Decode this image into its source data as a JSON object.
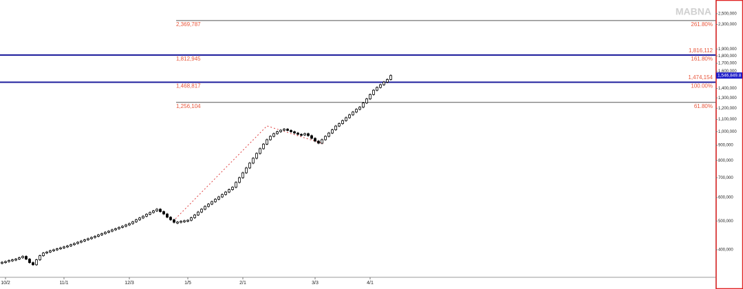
{
  "chart_data": {
    "type": "candlestick",
    "watermark": "MABNA",
    "log_scale": true,
    "ylim": [
      323000,
      2780000
    ],
    "yticks": [
      {
        "value": 400000,
        "label": "400,000"
      },
      {
        "value": 500000,
        "label": "500,000"
      },
      {
        "value": 600000,
        "label": "600,000"
      },
      {
        "value": 700000,
        "label": "700,000"
      },
      {
        "value": 800000,
        "label": "800,000"
      },
      {
        "value": 900000,
        "label": "900,000"
      },
      {
        "value": 1000000,
        "label": "1,000,000"
      },
      {
        "value": 1100000,
        "label": "1,100,000"
      },
      {
        "value": 1200000,
        "label": "1,200,000"
      },
      {
        "value": 1300000,
        "label": "1,300,000"
      },
      {
        "value": 1400000,
        "label": "1,400,000"
      },
      {
        "value": 1600000,
        "label": "1,600,000"
      },
      {
        "value": 1700000,
        "label": "1,700,000"
      },
      {
        "value": 1800000,
        "label": "1,800,000"
      },
      {
        "value": 1900000,
        "label": "1,900,000"
      },
      {
        "value": 2300000,
        "label": "2,300,000"
      },
      {
        "value": 2500000,
        "label": "2,500,000"
      }
    ],
    "categories": [
      null,
      "10/2",
      null,
      null,
      null,
      null,
      null,
      null,
      null,
      null,
      null,
      null,
      null,
      null,
      null,
      null,
      null,
      null,
      "11/1",
      null,
      null,
      null,
      null,
      null,
      null,
      null,
      null,
      null,
      null,
      null,
      null,
      null,
      null,
      null,
      null,
      null,
      null,
      "12/3",
      null,
      null,
      null,
      null,
      null,
      null,
      null,
      null,
      null,
      null,
      null,
      null,
      null,
      null,
      null,
      null,
      "1/5",
      null,
      null,
      null,
      null,
      null,
      null,
      null,
      null,
      null,
      null,
      null,
      null,
      null,
      null,
      null,
      "2/1",
      null,
      null,
      null,
      null,
      null,
      null,
      null,
      null,
      null,
      null,
      null,
      null,
      null,
      null,
      null,
      null,
      null,
      null,
      null,
      null,
      "3/3",
      null,
      null,
      null,
      null,
      null,
      null,
      null,
      null,
      null,
      null,
      null,
      null,
      null,
      null,
      null,
      "4/1",
      null,
      null,
      null,
      null,
      null,
      null
    ],
    "open": [
      360000,
      363000,
      365000,
      368000,
      370000,
      372000,
      376000,
      380000,
      372000,
      362000,
      356000,
      370000,
      382000,
      390000,
      393000,
      397000,
      400000,
      403000,
      406000,
      409000,
      412000,
      416000,
      420000,
      424000,
      428000,
      432000,
      436000,
      440000,
      444000,
      449000,
      453000,
      458000,
      462000,
      467000,
      471000,
      476000,
      480000,
      485000,
      490000,
      497000,
      505000,
      512000,
      519000,
      527000,
      534000,
      541000,
      548000,
      538000,
      528000,
      515000,
      505000,
      495000,
      496000,
      499000,
      501000,
      503000,
      513000,
      524000,
      536000,
      548000,
      560000,
      570000,
      581000,
      592000,
      603000,
      614000,
      626000,
      638000,
      650000,
      675000,
      700000,
      727000,
      755000,
      784000,
      814000,
      845000,
      877000,
      908000,
      940000,
      965000,
      985000,
      1000000,
      1012000,
      1020000,
      1010000,
      1000000,
      990000,
      980000,
      975000,
      985000,
      970000,
      950000,
      930000,
      915000,
      940000,
      965000,
      990000,
      1015000,
      1045000,
      1065000,
      1090000,
      1115000,
      1140000,
      1165000,
      1190000,
      1210000,
      1250000,
      1290000,
      1335000,
      1380000,
      1410000,
      1440000,
      1470000,
      1500000
    ],
    "close": [
      363000,
      365000,
      368000,
      370000,
      372000,
      376000,
      380000,
      372000,
      362000,
      356000,
      370000,
      382000,
      390000,
      393000,
      397000,
      400000,
      403000,
      406000,
      409000,
      412000,
      416000,
      420000,
      424000,
      428000,
      432000,
      436000,
      440000,
      444000,
      449000,
      453000,
      458000,
      462000,
      467000,
      471000,
      476000,
      480000,
      485000,
      490000,
      497000,
      505000,
      512000,
      519000,
      527000,
      534000,
      541000,
      548000,
      538000,
      528000,
      515000,
      505000,
      495000,
      496000,
      499000,
      501000,
      503000,
      513000,
      524000,
      536000,
      548000,
      560000,
      570000,
      581000,
      592000,
      603000,
      614000,
      626000,
      638000,
      650000,
      675000,
      700000,
      727000,
      755000,
      784000,
      814000,
      845000,
      877000,
      908000,
      940000,
      965000,
      985000,
      1000000,
      1012000,
      1020000,
      1010000,
      1000000,
      990000,
      980000,
      975000,
      985000,
      970000,
      950000,
      930000,
      915000,
      940000,
      965000,
      990000,
      1015000,
      1045000,
      1065000,
      1090000,
      1115000,
      1140000,
      1165000,
      1190000,
      1210000,
      1250000,
      1290000,
      1335000,
      1380000,
      1410000,
      1440000,
      1470000,
      1500000,
      1546849.8
    ],
    "last_price": {
      "value": 1546849.8,
      "label": "1,546,849.8"
    },
    "fib_levels": [
      {
        "value": 2369787,
        "label": "2,369,787",
        "ratio": {
          "value": 261.8,
          "label": "261.80%"
        },
        "color": "#555555",
        "extend_left": false
      },
      {
        "value": 1812945,
        "label": "1,812,945",
        "ratio": {
          "value": 161.8,
          "label": "161.80%"
        },
        "alt": {
          "value": 1816112,
          "label": "1,816,112"
        },
        "color": "#1c1c9c",
        "extend_left": true
      },
      {
        "value": 1468817,
        "label": "1,468,817",
        "ratio": {
          "value": 100,
          "label": "100.00%"
        },
        "alt": {
          "value": 1474154,
          "label": "1,474,154"
        },
        "color": "#1c1c9c",
        "extend_left": true
      },
      {
        "value": 1256104,
        "label": "1,256,104",
        "ratio": {
          "value": 61.8,
          "label": "61.80%"
        },
        "color": "#555555",
        "extend_left": false
      }
    ]
  }
}
